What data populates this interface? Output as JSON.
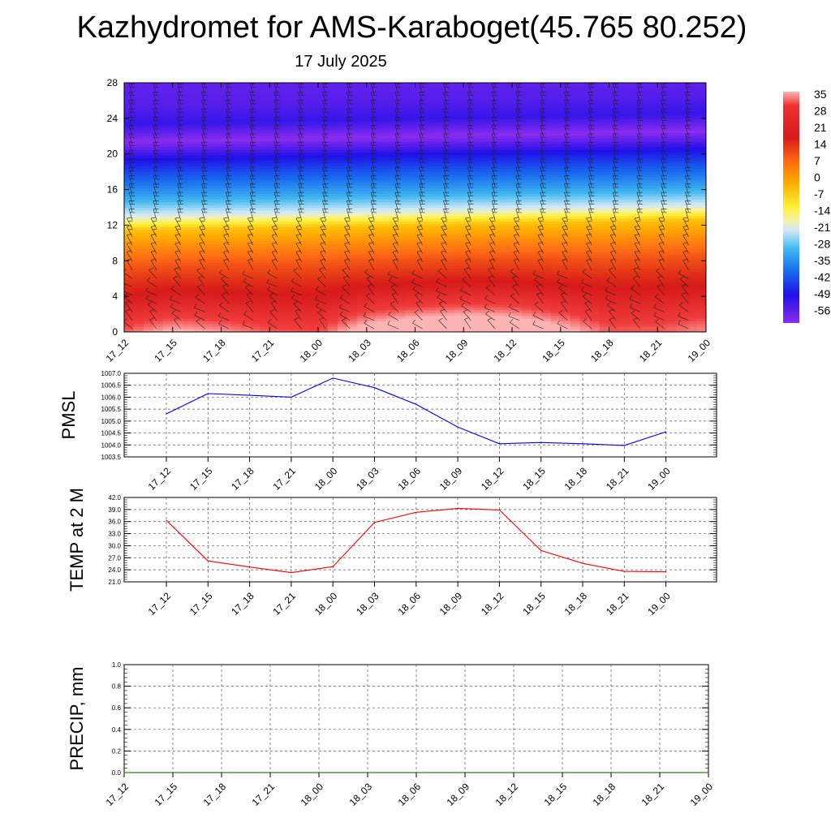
{
  "title": "Kazhydromet for AMS-Karaboget(45.765 80.252)",
  "subtitle": "17 July 2025",
  "chart_data": [
    {
      "type": "heatmap",
      "name": "temperature-height-section",
      "x": [
        "17_12",
        "17_15",
        "17_18",
        "17_21",
        "18_00",
        "18_03",
        "18_06",
        "18_09",
        "18_12",
        "18_15",
        "18_18",
        "18_21",
        "19_00"
      ],
      "ylim": [
        0,
        28
      ],
      "yticks": [
        0,
        4,
        8,
        12,
        16,
        20,
        24,
        28
      ],
      "colorbar": {
        "labels": [
          "35",
          "28",
          "21",
          "14",
          "7",
          "0",
          "-7",
          "-14",
          "-21",
          "-28",
          "-35",
          "-42",
          "-49",
          "-56"
        ],
        "range": [
          -60,
          38
        ]
      },
      "profile_levels": [
        0,
        2,
        4,
        6,
        8,
        10,
        12,
        13.5,
        16,
        18,
        20,
        22,
        24,
        26,
        28
      ],
      "profile_temps": [
        34,
        30,
        26,
        22,
        17,
        10,
        2,
        -14,
        -28,
        -38,
        -50,
        -60,
        -52,
        -55,
        -56
      ],
      "surface_warm_anomaly": [
        2,
        6,
        4,
        1,
        0,
        8,
        12,
        14,
        12,
        6,
        0,
        0,
        2
      ],
      "wind_barbs": true
    },
    {
      "type": "line",
      "name": "PMSL",
      "ylabel": "PMSL",
      "x": [
        "17_12",
        "17_15",
        "17_18",
        "17_21",
        "18_00",
        "18_03",
        "18_06",
        "18_09",
        "18_12",
        "18_15",
        "18_18",
        "18_21",
        "19_00"
      ],
      "series": [
        {
          "values": [
            1005.3,
            1006.15,
            1006.08,
            1006.0,
            1006.8,
            1006.4,
            1005.7,
            1004.75,
            1004.05,
            1004.1,
            1004.05,
            1003.98,
            1004.55
          ],
          "color": "#0000ff"
        }
      ],
      "ylim": [
        1003.5,
        1007.0
      ],
      "yticks": [
        "1003.5",
        "1004.0",
        "1004.5",
        "1005.0",
        "1005.5",
        "1006.0",
        "1006.5",
        "1007.0"
      ],
      "grid": true
    },
    {
      "type": "line",
      "name": "TEMP at 2 M",
      "ylabel": "TEMP at 2 M",
      "x": [
        "17_12",
        "17_15",
        "17_18",
        "17_21",
        "18_00",
        "18_03",
        "18_06",
        "18_09",
        "18_12",
        "18_15",
        "18_18",
        "18_21",
        "19_00"
      ],
      "series": [
        {
          "values": [
            36.3,
            26.2,
            24.7,
            23.3,
            24.8,
            35.8,
            38.3,
            39.3,
            38.9,
            28.8,
            25.6,
            23.6,
            23.5
          ],
          "color": "#ff0000"
        }
      ],
      "ylim": [
        21.0,
        42.0
      ],
      "yticks": [
        "21.0",
        "24.0",
        "27.0",
        "30.0",
        "33.0",
        "36.0",
        "39.0",
        "42.0"
      ],
      "grid": true
    },
    {
      "type": "line",
      "name": "PRECIP, mm",
      "ylabel": "PRECIP, mm",
      "x": [
        "17_12",
        "17_15",
        "17_18",
        "17_21",
        "18_00",
        "18_03",
        "18_06",
        "18_09",
        "18_12",
        "18_15",
        "18_18",
        "18_21",
        "19_00"
      ],
      "series": [
        {
          "values": [
            0,
            0,
            0,
            0,
            0,
            0,
            0,
            0,
            0,
            0,
            0,
            0,
            0
          ],
          "color": "#006400"
        }
      ],
      "ylim": [
        0.0,
        1.0
      ],
      "yticks": [
        "0.0",
        "0.2",
        "0.4",
        "0.6",
        "0.8",
        "1.0"
      ],
      "grid": true
    }
  ]
}
